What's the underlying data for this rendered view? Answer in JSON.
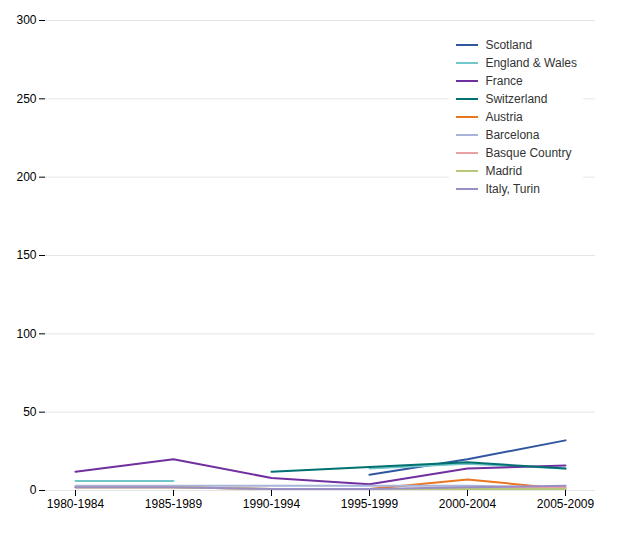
{
  "chart_data": {
    "type": "line",
    "categories": [
      "1980-1984",
      "1985-1989",
      "1990-1994",
      "1995-1999",
      "2000-2004",
      "2005-2009"
    ],
    "series": [
      {
        "name": "Scotland",
        "color": "#3056A0",
        "values": [
          null,
          null,
          null,
          10,
          20,
          32
        ]
      },
      {
        "name": "England & Wales",
        "color": "#72C7CA",
        "values": [
          6,
          6,
          null,
          14,
          17,
          14
        ]
      },
      {
        "name": "France",
        "color": "#7030A0",
        "values": [
          12,
          20,
          8,
          4,
          14,
          16
        ]
      },
      {
        "name": "Switzerland",
        "color": "#007070",
        "values": [
          null,
          null,
          12,
          15,
          18,
          14
        ]
      },
      {
        "name": "Austria",
        "color": "#E87722",
        "values": [
          2,
          2,
          1,
          1,
          7,
          1
        ]
      },
      {
        "name": "Barcelona",
        "color": "#A8B4D8",
        "values": [
          3,
          3,
          3,
          3,
          3,
          2
        ]
      },
      {
        "name": "Basque Country",
        "color": "#E8A0A0",
        "values": [
          2,
          2,
          1,
          1,
          1,
          2
        ]
      },
      {
        "name": "Madrid",
        "color": "#B5C77A",
        "values": [
          2,
          2,
          1,
          1,
          1,
          1
        ]
      },
      {
        "name": "Italy, Turin",
        "color": "#9B8EC4",
        "values": [
          2,
          2,
          1,
          1,
          2,
          3
        ]
      }
    ],
    "ylim": [
      0,
      300
    ],
    "yticks": [
      0,
      50,
      100,
      150,
      200,
      250,
      300
    ],
    "grid": true,
    "legend": "upper right"
  }
}
